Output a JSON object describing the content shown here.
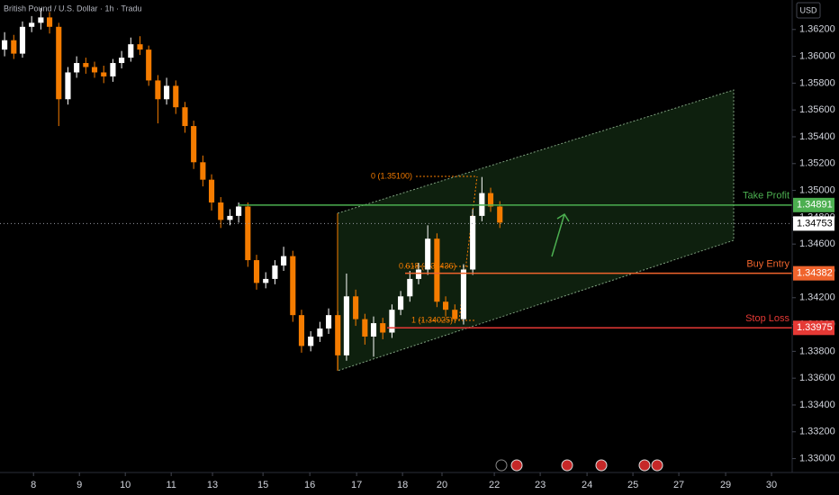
{
  "chart_data": {
    "type": "candlestick",
    "title": "British Pound / U.S. Dollar · 1h · Tradu",
    "currency": "USD",
    "x": [
      7.37,
      7.57,
      7.76,
      7.96,
      8.16,
      8.35,
      8.55,
      8.75,
      8.94,
      9.14,
      9.33,
      9.53,
      9.73,
      9.92,
      10.12,
      10.32,
      10.51,
      10.71,
      10.9,
      11.1,
      11.3,
      11.49,
      11.69,
      11.88,
      12.08,
      12.28,
      12.47,
      12.67,
      12.86,
      13.06,
      13.26,
      13.45,
      13.65,
      13.84,
      14.04,
      14.24,
      14.43,
      14.63,
      14.82,
      15.02,
      15.22,
      15.41,
      15.61,
      15.81,
      16.0,
      16.2,
      16.39,
      16.59,
      16.79,
      16.98,
      17.18,
      17.37,
      17.57,
      17.77,
      17.96,
      18.16
    ],
    "open": [
      1.3605,
      1.3612,
      1.3602,
      1.3622,
      1.3625,
      1.3629,
      1.3622,
      1.3568,
      1.3588,
      1.3595,
      1.3592,
      1.3588,
      1.3585,
      1.3595,
      1.3599,
      1.3609,
      1.3605,
      1.3582,
      1.3568,
      1.3578,
      1.3562,
      1.3548,
      1.3521,
      1.3508,
      1.3491,
      1.3478,
      1.3481,
      1.3488,
      1.3448,
      1.3431,
      1.3434,
      1.3444,
      1.3451,
      1.3407,
      1.3384,
      1.3391,
      1.3397,
      1.3407,
      1.3377,
      1.3421,
      1.3404,
      1.3391,
      1.3401,
      1.3394,
      1.3411,
      1.3421,
      1.3434,
      1.3441,
      1.3464,
      1.3417,
      1.3411,
      1.3404,
      1.3441,
      1.3481,
      1.3498,
      1.3488
    ],
    "high": [
      1.3618,
      1.3616,
      1.3626,
      1.363,
      1.3636,
      1.3633,
      1.3625,
      1.3592,
      1.36,
      1.3599,
      1.3596,
      1.3593,
      1.3598,
      1.3604,
      1.3614,
      1.3615,
      1.3608,
      1.3586,
      1.3584,
      1.3582,
      1.3566,
      1.3552,
      1.3526,
      1.3512,
      1.3495,
      1.3486,
      1.3491,
      1.3491,
      1.3452,
      1.3439,
      1.3448,
      1.3458,
      1.3455,
      1.3411,
      1.3395,
      1.3402,
      1.3412,
      1.341,
      1.3438,
      1.3426,
      1.3408,
      1.3406,
      1.3405,
      1.3415,
      1.3425,
      1.344,
      1.3446,
      1.3474,
      1.3468,
      1.3421,
      1.3415,
      1.3445,
      1.3486,
      1.351,
      1.3502,
      1.3492
    ],
    "low": [
      1.36,
      1.3598,
      1.3599,
      1.3618,
      1.362,
      1.3617,
      1.3548,
      1.3564,
      1.3584,
      1.3587,
      1.3584,
      1.358,
      1.3581,
      1.3591,
      1.3596,
      1.3601,
      1.3578,
      1.355,
      1.3564,
      1.3557,
      1.3543,
      1.3516,
      1.3503,
      1.3485,
      1.3472,
      1.3474,
      1.3476,
      1.3443,
      1.3426,
      1.3427,
      1.343,
      1.344,
      1.3402,
      1.3379,
      1.338,
      1.3387,
      1.3393,
      1.3366,
      1.3373,
      1.3399,
      1.3385,
      1.3376,
      1.3389,
      1.339,
      1.3407,
      1.3417,
      1.343,
      1.3437,
      1.3413,
      1.3406,
      1.3401,
      1.34,
      1.3437,
      1.3477,
      1.3484,
      1.3472
    ],
    "close": [
      1.3612,
      1.3602,
      1.3622,
      1.3625,
      1.3629,
      1.3622,
      1.3568,
      1.3588,
      1.3595,
      1.3592,
      1.3588,
      1.3585,
      1.3595,
      1.3599,
      1.3609,
      1.3605,
      1.3582,
      1.3568,
      1.3578,
      1.3562,
      1.3548,
      1.3521,
      1.3508,
      1.3491,
      1.3478,
      1.3481,
      1.3488,
      1.3448,
      1.3431,
      1.3434,
      1.3444,
      1.3451,
      1.3407,
      1.3384,
      1.3391,
      1.3397,
      1.3407,
      1.3377,
      1.3421,
      1.3404,
      1.3391,
      1.3401,
      1.3394,
      1.3411,
      1.3421,
      1.3434,
      1.3441,
      1.3464,
      1.3417,
      1.3411,
      1.3404,
      1.3441,
      1.3481,
      1.3498,
      1.3488,
      1.3476
    ],
    "up_color": "#ffffff",
    "down_color": "#f57c00",
    "xlim": [
      7.27,
      24.53
    ],
    "xticks": [
      {
        "value": 8,
        "label": "8"
      },
      {
        "value": 9,
        "label": "9"
      },
      {
        "value": 10,
        "label": "10"
      },
      {
        "value": 11,
        "label": "11"
      },
      {
        "value": 11.9,
        "label": "13"
      },
      {
        "value": 13,
        "label": "15"
      },
      {
        "value": 14.02,
        "label": "16"
      },
      {
        "value": 15.04,
        "label": "17"
      },
      {
        "value": 16.04,
        "label": "18"
      },
      {
        "value": 16.9,
        "label": "20"
      },
      {
        "value": 18.04,
        "label": "22"
      },
      {
        "value": 19.04,
        "label": "23"
      },
      {
        "value": 20.06,
        "label": "24"
      },
      {
        "value": 21.06,
        "label": "25"
      },
      {
        "value": 22.06,
        "label": "27"
      },
      {
        "value": 23.08,
        "label": "29"
      },
      {
        "value": 24.08,
        "label": "30"
      }
    ],
    "ylim": [
      1.3293,
      1.3642
    ],
    "yticks": [
      {
        "value": 1.33,
        "label": "1.33000"
      },
      {
        "value": 1.332,
        "label": "1.33200"
      },
      {
        "value": 1.334,
        "label": "1.33400"
      },
      {
        "value": 1.336,
        "label": "1.33600"
      },
      {
        "value": 1.338,
        "label": "1.33800"
      },
      {
        "value": 1.34,
        "label": "1.34000"
      },
      {
        "value": 1.342,
        "label": "1.34200"
      },
      {
        "value": 1.344,
        "label": "1.34400"
      },
      {
        "value": 1.346,
        "label": "1.34600"
      },
      {
        "value": 1.348,
        "label": "1.34800"
      },
      {
        "value": 1.35,
        "label": "1.35000"
      },
      {
        "value": 1.352,
        "label": "1.35200"
      },
      {
        "value": 1.354,
        "label": "1.35400"
      },
      {
        "value": 1.356,
        "label": "1.35600"
      },
      {
        "value": 1.358,
        "label": "1.35800"
      },
      {
        "value": 1.36,
        "label": "1.36000"
      },
      {
        "value": 1.362,
        "label": "1.36200"
      }
    ],
    "grid": false,
    "current_price": 1.34753,
    "levels": [
      {
        "name": "Take Profit",
        "value": 1.34891,
        "color": "#4caf50"
      },
      {
        "name": "Buy Entry",
        "value": 1.34382,
        "color": "#f0642d"
      },
      {
        "name": "Stop Loss",
        "value": 1.33975,
        "color": "#e53935"
      }
    ],
    "fib_labels": [
      "0 (1.35100)",
      "0.618 (1.34436)",
      "1 (1.34025)"
    ]
  }
}
